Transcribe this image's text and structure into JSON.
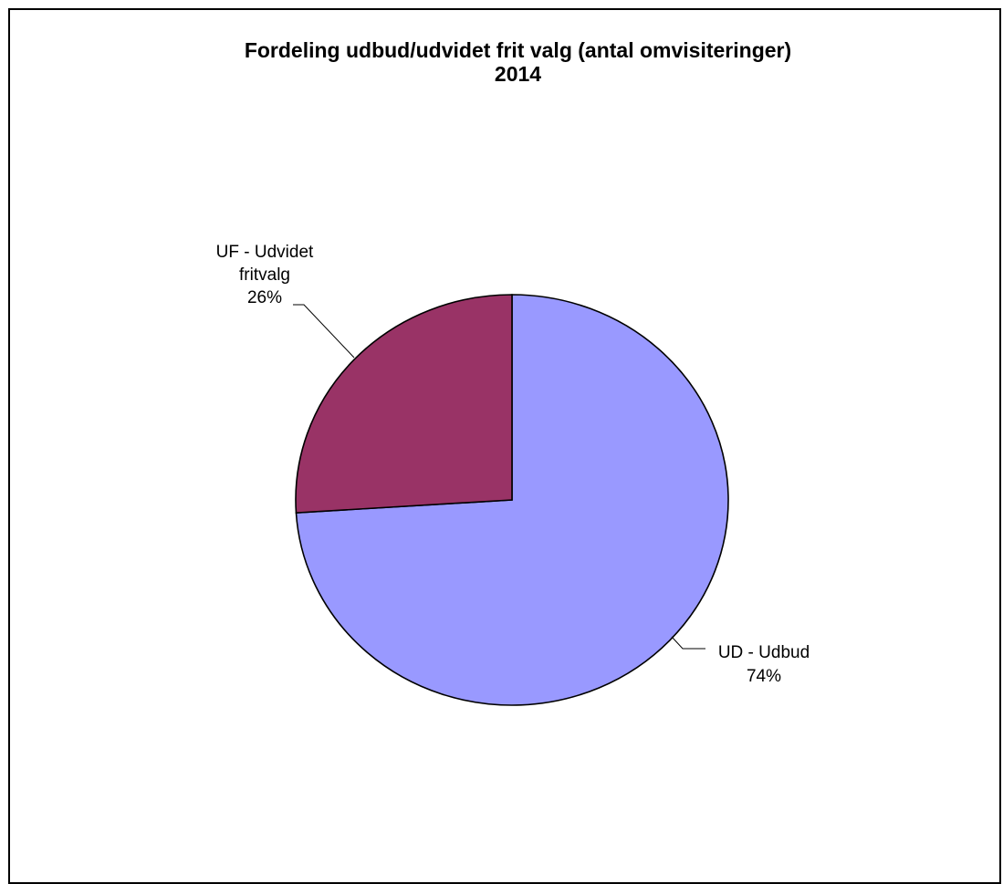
{
  "chart_data": {
    "type": "pie",
    "title_line1": "Fordeling udbud/udvidet frit valg (antal omvisiteringer)",
    "title_line2": "2014",
    "slices": [
      {
        "label_line1": "UD - Udbud",
        "label_line2": "",
        "percent": "74%",
        "value": 74,
        "color": "#9999ff"
      },
      {
        "label_line1": "UF - Udvidet",
        "label_line2": "fritvalg",
        "percent": "26%",
        "value": 26,
        "color": "#993366"
      }
    ]
  }
}
